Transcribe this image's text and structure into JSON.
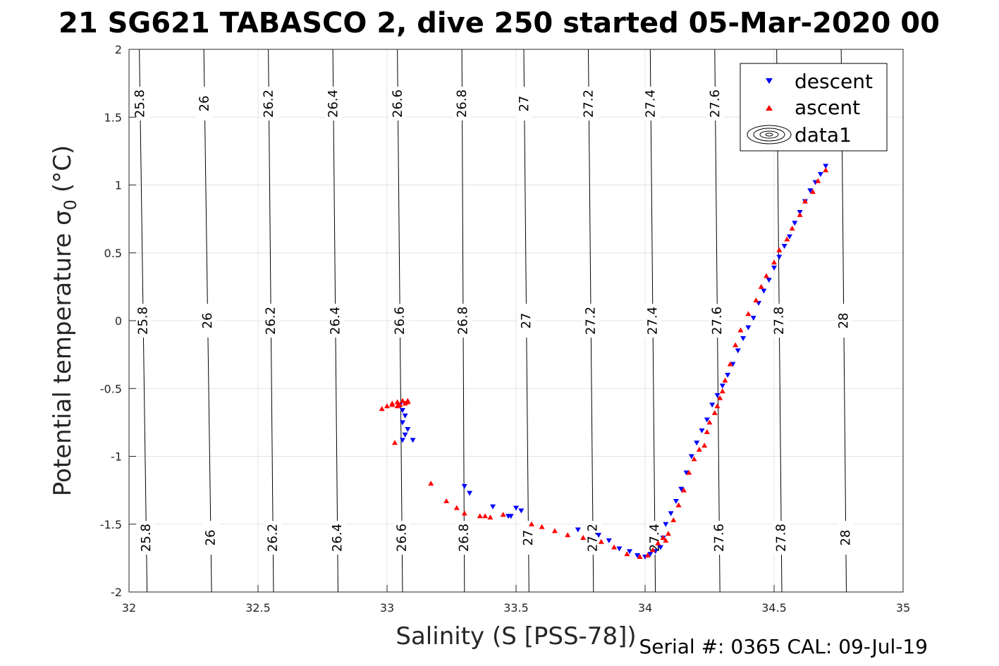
{
  "chart_data": {
    "type": "scatter",
    "title": "21 SG621 TABASCO 2, dive 250 started 05-Mar-2020 00",
    "xlabel": "Salinity (S [PSS-78])",
    "ylabel_main": "Potential temperature σ",
    "ylabel_sub": "0",
    "ylabel_unit": "(°C)",
    "xlim": [
      32,
      35
    ],
    "ylim": [
      -2,
      2
    ],
    "xticks": [
      32,
      32.5,
      33,
      33.5,
      34,
      34.5,
      35
    ],
    "xtick_labels": [
      "32",
      "32.5",
      "33",
      "33.5",
      "34",
      "34.5",
      "35"
    ],
    "yticks": [
      -2,
      -1.5,
      -1,
      -0.5,
      0,
      0.5,
      1,
      1.5,
      2
    ],
    "ytick_labels": [
      "-2",
      "-1.5",
      "-1",
      "-0.5",
      "0",
      "0.5",
      "1",
      "1.5",
      "2"
    ],
    "grid": true,
    "legend_position": "top-right",
    "legend": [
      "descent",
      "ascent",
      "data1"
    ],
    "series": [
      {
        "name": "descent",
        "marker": "triangle-down",
        "color": "#0000ff",
        "x": [
          33.05,
          33.06,
          33.07,
          33.06,
          33.08,
          33.07,
          33.06,
          33.1,
          33.3,
          33.32,
          33.41,
          33.5,
          33.52,
          33.48,
          33.47,
          33.74,
          33.82,
          33.86,
          33.9,
          33.94,
          33.97,
          34.0,
          34.02,
          34.04,
          34.06,
          34.07,
          34.08,
          34.1,
          34.12,
          34.14,
          34.16,
          34.18,
          34.2,
          34.22,
          34.24,
          34.26,
          34.28,
          34.3,
          34.32,
          34.34,
          34.36,
          34.38,
          34.4,
          34.42,
          34.44,
          34.46,
          34.48,
          34.5,
          34.52,
          34.54,
          34.56,
          34.58,
          34.6,
          34.62,
          34.64,
          34.66,
          34.68,
          34.7
        ],
        "y": [
          -0.62,
          -0.66,
          -0.7,
          -0.75,
          -0.8,
          -0.84,
          -0.88,
          -0.88,
          -1.22,
          -1.27,
          -1.37,
          -1.38,
          -1.4,
          -1.44,
          -1.44,
          -1.54,
          -1.58,
          -1.62,
          -1.68,
          -1.7,
          -1.73,
          -1.74,
          -1.72,
          -1.7,
          -1.67,
          -1.6,
          -1.5,
          -1.42,
          -1.33,
          -1.24,
          -1.12,
          -1.0,
          -0.9,
          -0.81,
          -0.73,
          -0.62,
          -0.55,
          -0.48,
          -0.4,
          -0.32,
          -0.22,
          -0.13,
          -0.05,
          0.02,
          0.13,
          0.22,
          0.3,
          0.39,
          0.47,
          0.55,
          0.62,
          0.72,
          0.8,
          0.88,
          0.96,
          1.02,
          1.08,
          1.14
        ]
      },
      {
        "name": "ascent",
        "marker": "triangle-up",
        "color": "#ff0000",
        "x": [
          32.98,
          33.0,
          33.02,
          33.04,
          33.06,
          33.08,
          33.02,
          33.04,
          33.08,
          33.07,
          33.05,
          33.03,
          33.17,
          33.23,
          33.27,
          33.3,
          33.36,
          33.38,
          33.4,
          33.45,
          33.56,
          33.6,
          33.65,
          33.7,
          33.76,
          33.83,
          33.88,
          33.93,
          33.98,
          34.01,
          34.03,
          34.05,
          34.07,
          34.08,
          34.09,
          34.11,
          34.13,
          34.15,
          34.17,
          34.19,
          34.21,
          34.23,
          34.24,
          34.25,
          34.27,
          34.28,
          34.29,
          34.3,
          34.31,
          34.33,
          34.35,
          34.37,
          34.4,
          34.43,
          34.45,
          34.47,
          34.5,
          34.52,
          34.55,
          34.57,
          34.6,
          34.62,
          34.65,
          34.67,
          34.7
        ],
        "y": [
          -0.65,
          -0.63,
          -0.61,
          -0.6,
          -0.59,
          -0.59,
          -0.62,
          -0.63,
          -0.6,
          -0.61,
          -0.62,
          -0.9,
          -1.2,
          -1.33,
          -1.38,
          -1.42,
          -1.44,
          -1.44,
          -1.45,
          -1.43,
          -1.5,
          -1.52,
          -1.55,
          -1.58,
          -1.6,
          -1.63,
          -1.67,
          -1.72,
          -1.74,
          -1.73,
          -1.69,
          -1.64,
          -1.6,
          -1.62,
          -1.57,
          -1.47,
          -1.36,
          -1.25,
          -1.12,
          -1.02,
          -0.95,
          -0.92,
          -0.82,
          -0.75,
          -0.68,
          -0.63,
          -0.57,
          -0.52,
          -0.44,
          -0.32,
          -0.18,
          -0.07,
          0.05,
          0.15,
          0.25,
          0.33,
          0.43,
          0.52,
          0.6,
          0.68,
          0.78,
          0.88,
          0.95,
          1.03,
          1.11
        ]
      }
    ],
    "contours": {
      "label": "sigma0",
      "levels": [
        25.8,
        26,
        26.2,
        26.4,
        26.6,
        26.8,
        27,
        27.2,
        27.4,
        27.6,
        27.8,
        28
      ],
      "level_labels": [
        "25.8",
        "26",
        "26.2",
        "26.4",
        "26.6",
        "26.8",
        "27",
        "27.2",
        "27.4",
        "27.6",
        "27.8",
        "28"
      ],
      "salinity_at_top": [
        32.04,
        32.29,
        32.54,
        32.79,
        33.04,
        33.29,
        33.53,
        33.78,
        34.02,
        34.27,
        34.51,
        34.76
      ],
      "salinity_at_bottom": [
        32.07,
        32.32,
        32.56,
        32.81,
        33.06,
        33.3,
        33.55,
        33.8,
        34.04,
        34.29,
        34.53,
        34.78
      ]
    }
  },
  "footer": {
    "serial": "Serial #: 0365  CAL: 09-Jul-19"
  }
}
